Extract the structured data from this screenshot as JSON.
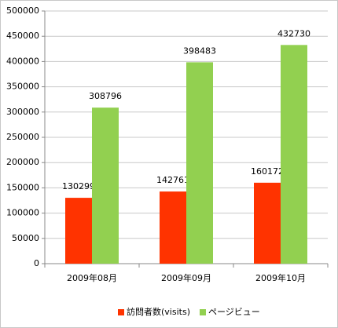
{
  "chart_data": {
    "type": "bar",
    "categories": [
      "2009年08月",
      "2009年09月",
      "2009年10月"
    ],
    "series": [
      {
        "name": "訪問者数(visits)",
        "color": "#ff3300",
        "values": [
          130299,
          142761,
          160172
        ]
      },
      {
        "name": "ページビュー",
        "color": "#92d050",
        "values": [
          308796,
          398483,
          432730
        ]
      }
    ],
    "ylim": [
      0,
      500000
    ],
    "yticks": [
      0,
      50000,
      100000,
      150000,
      200000,
      250000,
      300000,
      350000,
      400000,
      450000,
      500000
    ],
    "grid": true,
    "legend": "bottom",
    "data_labels": true
  }
}
